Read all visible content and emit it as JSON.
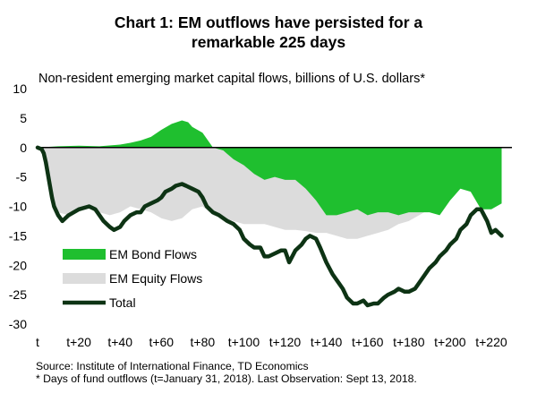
{
  "chart_data": {
    "type": "area",
    "title_line1": "Chart 1: EM outflows have persisted for a",
    "title_line2": "remarkable 225 days",
    "subtitle": "Non-resident emerging market capital flows, billions of U.S. dollars*",
    "ylim": [
      -30,
      10
    ],
    "xlim": [
      0,
      230
    ],
    "y_ticks": [
      10,
      5,
      0,
      -5,
      -10,
      -15,
      -20,
      -25,
      -30
    ],
    "x_tick_values": [
      0,
      20,
      40,
      60,
      80,
      100,
      120,
      140,
      160,
      180,
      200,
      220
    ],
    "x_tick_labels": [
      "t",
      "t+20",
      "t+40",
      "t+60",
      "t+80",
      "t+100",
      "t+120",
      "t+140",
      "t+160",
      "t+180",
      "t+200",
      "t+220"
    ],
    "legend": [
      {
        "name": "EM Bond Flows",
        "color": "#1fbf2f"
      },
      {
        "name": "EM Equity Flows",
        "color": "#dcdcdc"
      },
      {
        "name": "Total",
        "color": "#0d3314"
      }
    ],
    "series": [
      {
        "name": "EM Equity Flows",
        "x": [
          0,
          2,
          4,
          6,
          8,
          10,
          15,
          20,
          25,
          30,
          35,
          40,
          45,
          50,
          55,
          60,
          65,
          70,
          75,
          80,
          85,
          90,
          95,
          100,
          105,
          110,
          115,
          120,
          125,
          130,
          135,
          140,
          145,
          150,
          155,
          160,
          165,
          170,
          175,
          180,
          185,
          190,
          195,
          200,
          205,
          210,
          215,
          220,
          225
        ],
        "values": [
          0,
          -0.3,
          -3,
          -7,
          -9.5,
          -11,
          -11.5,
          -10.5,
          -10,
          -11,
          -11.5,
          -11,
          -10,
          -10.5,
          -11,
          -12,
          -12.5,
          -12,
          -10.5,
          -10,
          -11.5,
          -12,
          -12.5,
          -13,
          -13,
          -13,
          -13.5,
          -14,
          -14,
          -14.2,
          -14.5,
          -14.5,
          -15,
          -15.5,
          -15.5,
          -15,
          -14.5,
          -14,
          -13,
          -12.5,
          -11.5,
          -10.5,
          -9,
          -7.5,
          -5.5,
          -4,
          -3,
          -3.5,
          -5
        ]
      },
      {
        "name": "EM Bond Flows",
        "x": [
          0,
          10,
          20,
          30,
          40,
          45,
          50,
          55,
          60,
          65,
          70,
          73,
          75,
          80,
          85,
          90,
          95,
          100,
          105,
          110,
          115,
          120,
          125,
          130,
          135,
          140,
          145,
          150,
          155,
          160,
          165,
          170,
          175,
          180,
          185,
          190,
          195,
          200,
          205,
          210,
          215,
          220,
          225
        ],
        "values": [
          0,
          0.2,
          0.3,
          0.2,
          0.5,
          0.8,
          1.2,
          1.8,
          3,
          4,
          4.6,
          4.3,
          3.5,
          2.5,
          0,
          -0.5,
          -2,
          -3,
          -4.5,
          -5.5,
          -5,
          -5.5,
          -5.5,
          -7,
          -9,
          -11.5,
          -11.5,
          -11,
          -10.5,
          -11.5,
          -11,
          -11,
          -11.5,
          -11,
          -11,
          -11,
          -11.5,
          -9,
          -7,
          -7.5,
          -10.5,
          -10.5,
          -9.5
        ]
      },
      {
        "name": "Total",
        "x": [
          0,
          2,
          3,
          4,
          5,
          6,
          7,
          8,
          10,
          12,
          15,
          20,
          25,
          28,
          30,
          32,
          35,
          37,
          40,
          42,
          45,
          48,
          50,
          52,
          55,
          58,
          60,
          62,
          65,
          67,
          70,
          72,
          75,
          78,
          80,
          82,
          85,
          88,
          90,
          92,
          95,
          98,
          100,
          103,
          105,
          108,
          110,
          112,
          115,
          118,
          120,
          122,
          125,
          128,
          130,
          132,
          135,
          137,
          140,
          143,
          145,
          148,
          150,
          153,
          155,
          158,
          160,
          163,
          165,
          168,
          170,
          173,
          175,
          178,
          180,
          183,
          185,
          188,
          190,
          193,
          195,
          198,
          200,
          203,
          205,
          208,
          210,
          213,
          215,
          218,
          220,
          222,
          225
        ],
        "values": [
          0,
          -0.3,
          -1,
          -2.5,
          -4.5,
          -6.5,
          -8.5,
          -10,
          -11.5,
          -12.5,
          -11.5,
          -10.5,
          -10,
          -10.5,
          -11.5,
          -12.5,
          -13.5,
          -14,
          -13.5,
          -12.5,
          -11.5,
          -11,
          -11,
          -10,
          -9.5,
          -9,
          -8.5,
          -7.5,
          -7,
          -6.5,
          -6.2,
          -6.5,
          -7,
          -7.5,
          -8.5,
          -10,
          -11,
          -11.5,
          -12,
          -12.5,
          -13,
          -14,
          -15.5,
          -16.5,
          -17,
          -17,
          -18.5,
          -18.5,
          -18,
          -17.5,
          -17.5,
          -19.5,
          -17.5,
          -16.5,
          -15.5,
          -15,
          -15.5,
          -17,
          -19.5,
          -21.5,
          -22.5,
          -24,
          -25.5,
          -26.5,
          -26.5,
          -26,
          -26.8,
          -26.5,
          -26.5,
          -25.5,
          -25,
          -24.5,
          -24,
          -24.5,
          -24.5,
          -24,
          -23,
          -21.5,
          -20.5,
          -19.5,
          -18.5,
          -17.5,
          -16.5,
          -15.5,
          -14,
          -13,
          -11.5,
          -10.5,
          -10.5,
          -12.5,
          -14.5,
          -14,
          -15
        ]
      }
    ]
  },
  "source_line": "Source: Institute of International Finance, TD Economics",
  "note_line": "* Days of fund outflows (t=January 31, 2018). Last Observation: Sept 13, 2018."
}
